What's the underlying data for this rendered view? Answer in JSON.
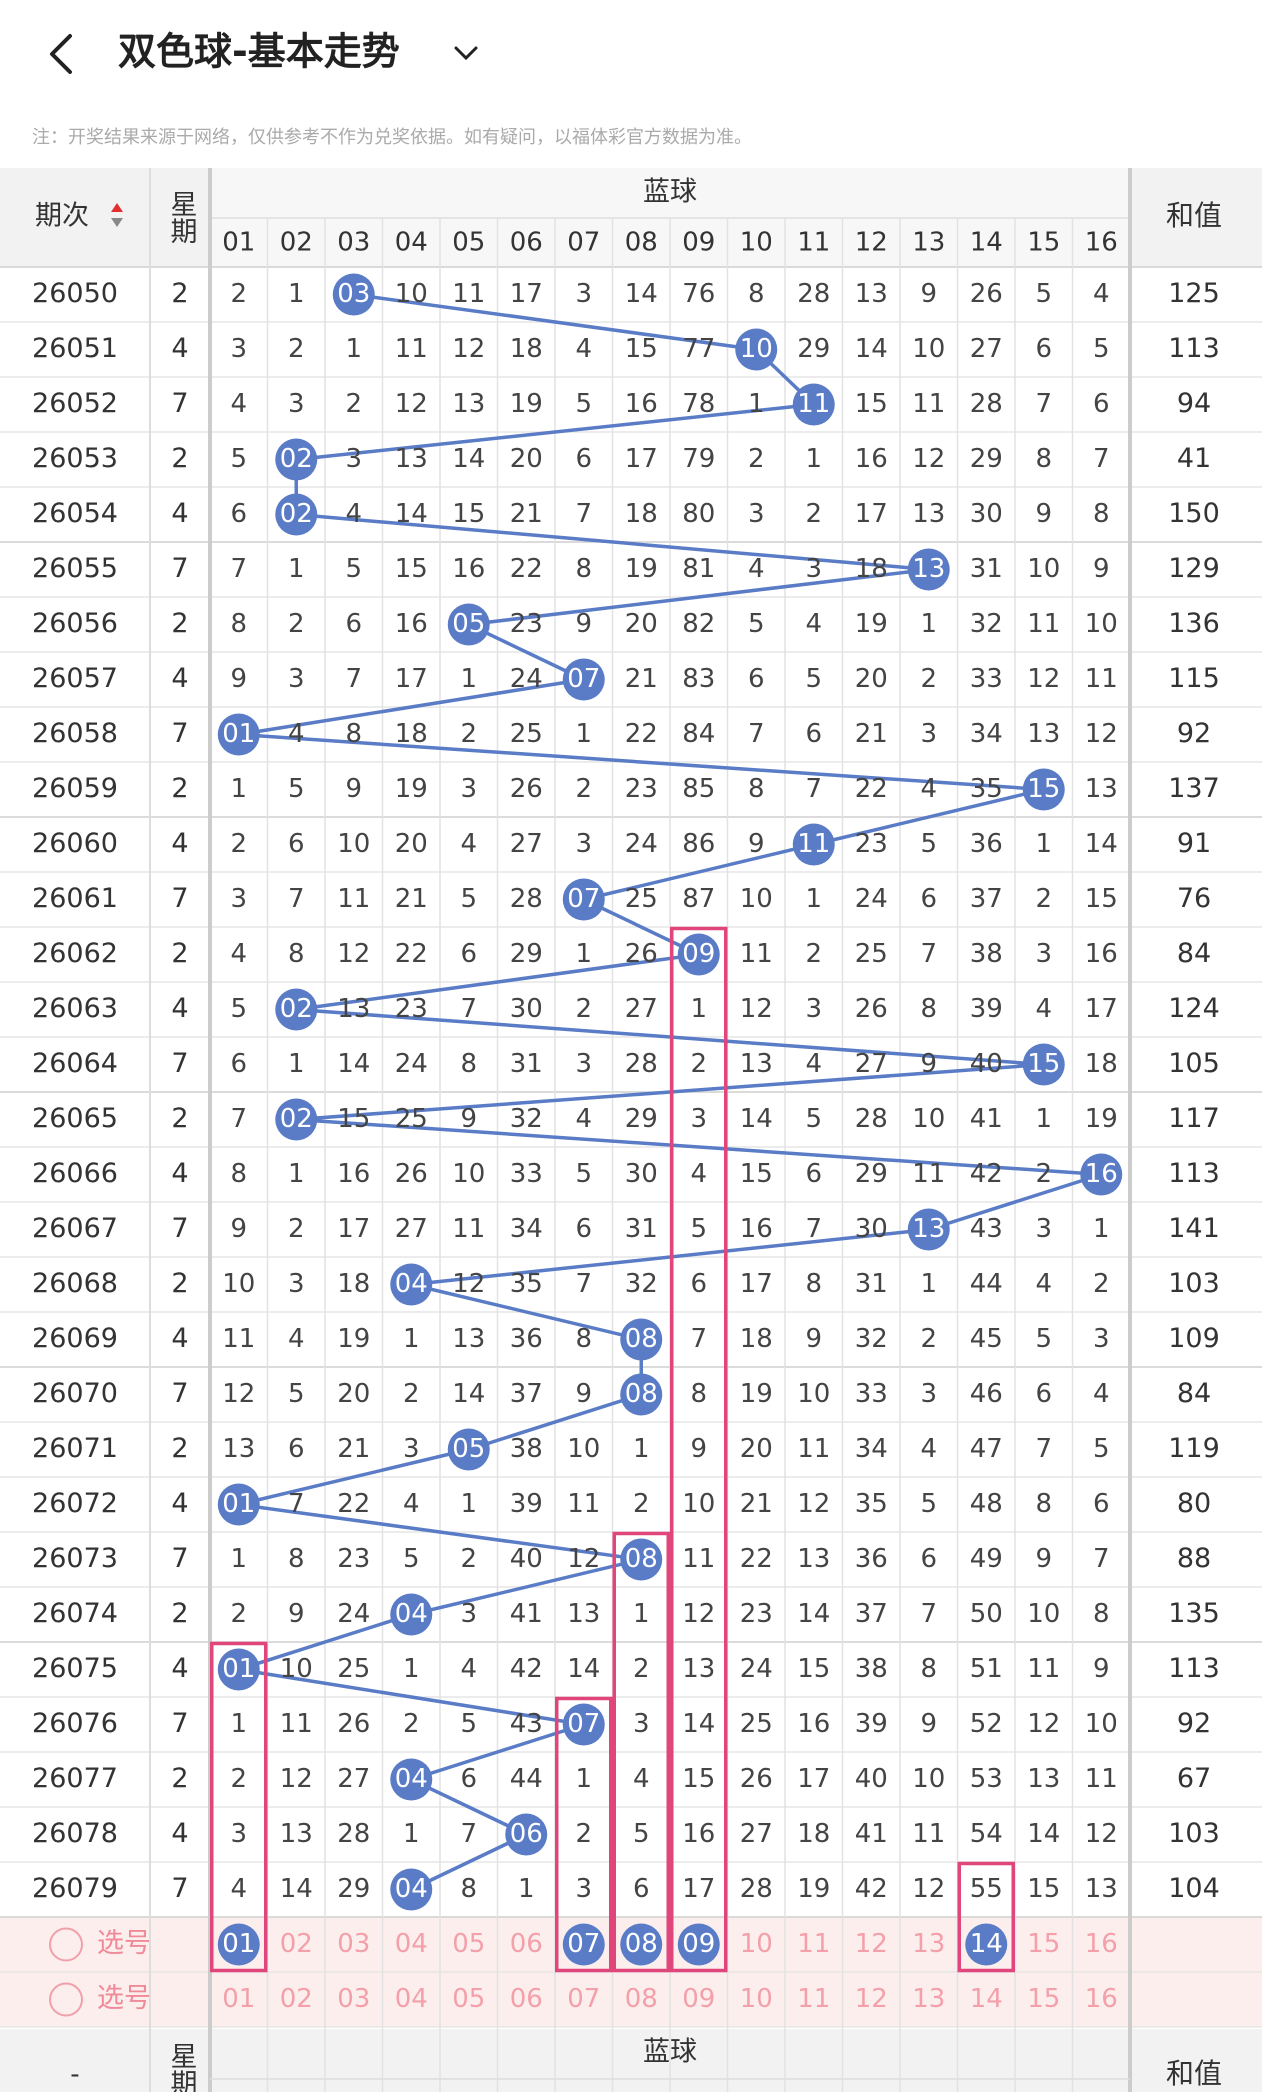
{
  "header": {
    "title": "双色球-基本走势"
  },
  "note": "注：开奖结果来源于网络，仅供参考不作为兑奖依据。如有疑问，以福体彩官方数据为准。",
  "table": {
    "columns": {
      "period": "期次",
      "weekday": "星期",
      "blue": "蓝球",
      "sum": "和值"
    },
    "numbers": [
      "01",
      "02",
      "03",
      "04",
      "05",
      "06",
      "07",
      "08",
      "09",
      "10",
      "11",
      "12",
      "13",
      "14",
      "15",
      "16"
    ],
    "rows": [
      {
        "period": "26050",
        "weekday": "2",
        "cells": [
          "2",
          "1",
          "03",
          "10",
          "11",
          "17",
          "3",
          "14",
          "76",
          "8",
          "28",
          "13",
          "9",
          "26",
          "5",
          "4"
        ],
        "hit": 2,
        "sum": "125"
      },
      {
        "period": "26051",
        "weekday": "4",
        "cells": [
          "3",
          "2",
          "1",
          "11",
          "12",
          "18",
          "4",
          "15",
          "77",
          "10",
          "29",
          "14",
          "10",
          "27",
          "6",
          "5"
        ],
        "hit": 9,
        "sum": "113"
      },
      {
        "period": "26052",
        "weekday": "7",
        "cells": [
          "4",
          "3",
          "2",
          "12",
          "13",
          "19",
          "5",
          "16",
          "78",
          "1",
          "11",
          "15",
          "11",
          "28",
          "7",
          "6"
        ],
        "hit": 10,
        "sum": "94"
      },
      {
        "period": "26053",
        "weekday": "2",
        "cells": [
          "5",
          "02",
          "3",
          "13",
          "14",
          "20",
          "6",
          "17",
          "79",
          "2",
          "1",
          "16",
          "12",
          "29",
          "8",
          "7"
        ],
        "hit": 1,
        "sum": "41"
      },
      {
        "period": "26054",
        "weekday": "4",
        "cells": [
          "6",
          "02",
          "4",
          "14",
          "15",
          "21",
          "7",
          "18",
          "80",
          "3",
          "2",
          "17",
          "13",
          "30",
          "9",
          "8"
        ],
        "hit": 1,
        "sum": "150"
      },
      {
        "period": "26055",
        "weekday": "7",
        "cells": [
          "7",
          "1",
          "5",
          "15",
          "16",
          "22",
          "8",
          "19",
          "81",
          "4",
          "3",
          "18",
          "13",
          "31",
          "10",
          "9"
        ],
        "hit": 12,
        "sum": "129"
      },
      {
        "period": "26056",
        "weekday": "2",
        "cells": [
          "8",
          "2",
          "6",
          "16",
          "05",
          "23",
          "9",
          "20",
          "82",
          "5",
          "4",
          "19",
          "1",
          "32",
          "11",
          "10"
        ],
        "hit": 4,
        "sum": "136"
      },
      {
        "period": "26057",
        "weekday": "4",
        "cells": [
          "9",
          "3",
          "7",
          "17",
          "1",
          "24",
          "07",
          "21",
          "83",
          "6",
          "5",
          "20",
          "2",
          "33",
          "12",
          "11"
        ],
        "hit": 6,
        "sum": "115"
      },
      {
        "period": "26058",
        "weekday": "7",
        "cells": [
          "01",
          "4",
          "8",
          "18",
          "2",
          "25",
          "1",
          "22",
          "84",
          "7",
          "6",
          "21",
          "3",
          "34",
          "13",
          "12"
        ],
        "hit": 0,
        "sum": "92"
      },
      {
        "period": "26059",
        "weekday": "2",
        "cells": [
          "1",
          "5",
          "9",
          "19",
          "3",
          "26",
          "2",
          "23",
          "85",
          "8",
          "7",
          "22",
          "4",
          "35",
          "15",
          "13"
        ],
        "hit": 14,
        "sum": "137"
      },
      {
        "period": "26060",
        "weekday": "4",
        "cells": [
          "2",
          "6",
          "10",
          "20",
          "4",
          "27",
          "3",
          "24",
          "86",
          "9",
          "11",
          "23",
          "5",
          "36",
          "1",
          "14"
        ],
        "hit": 10,
        "sum": "91"
      },
      {
        "period": "26061",
        "weekday": "7",
        "cells": [
          "3",
          "7",
          "11",
          "21",
          "5",
          "28",
          "07",
          "25",
          "87",
          "10",
          "1",
          "24",
          "6",
          "37",
          "2",
          "15"
        ],
        "hit": 6,
        "sum": "76"
      },
      {
        "period": "26062",
        "weekday": "2",
        "cells": [
          "4",
          "8",
          "12",
          "22",
          "6",
          "29",
          "1",
          "26",
          "09",
          "11",
          "2",
          "25",
          "7",
          "38",
          "3",
          "16"
        ],
        "hit": 8,
        "sum": "84"
      },
      {
        "period": "26063",
        "weekday": "4",
        "cells": [
          "5",
          "02",
          "13",
          "23",
          "7",
          "30",
          "2",
          "27",
          "1",
          "12",
          "3",
          "26",
          "8",
          "39",
          "4",
          "17"
        ],
        "hit": 1,
        "sum": "124"
      },
      {
        "period": "26064",
        "weekday": "7",
        "cells": [
          "6",
          "1",
          "14",
          "24",
          "8",
          "31",
          "3",
          "28",
          "2",
          "13",
          "4",
          "27",
          "9",
          "40",
          "15",
          "18"
        ],
        "hit": 14,
        "sum": "105"
      },
      {
        "period": "26065",
        "weekday": "2",
        "cells": [
          "7",
          "02",
          "15",
          "25",
          "9",
          "32",
          "4",
          "29",
          "3",
          "14",
          "5",
          "28",
          "10",
          "41",
          "1",
          "19"
        ],
        "hit": 1,
        "sum": "117"
      },
      {
        "period": "26066",
        "weekday": "4",
        "cells": [
          "8",
          "1",
          "16",
          "26",
          "10",
          "33",
          "5",
          "30",
          "4",
          "15",
          "6",
          "29",
          "11",
          "42",
          "2",
          "16"
        ],
        "hit": 15,
        "sum": "113"
      },
      {
        "period": "26067",
        "weekday": "7",
        "cells": [
          "9",
          "2",
          "17",
          "27",
          "11",
          "34",
          "6",
          "31",
          "5",
          "16",
          "7",
          "30",
          "13",
          "43",
          "3",
          "1"
        ],
        "hit": 12,
        "sum": "141"
      },
      {
        "period": "26068",
        "weekday": "2",
        "cells": [
          "10",
          "3",
          "18",
          "04",
          "12",
          "35",
          "7",
          "32",
          "6",
          "17",
          "8",
          "31",
          "1",
          "44",
          "4",
          "2"
        ],
        "hit": 3,
        "sum": "103"
      },
      {
        "period": "26069",
        "weekday": "4",
        "cells": [
          "11",
          "4",
          "19",
          "1",
          "13",
          "36",
          "8",
          "08",
          "7",
          "18",
          "9",
          "32",
          "2",
          "45",
          "5",
          "3"
        ],
        "hit": 7,
        "sum": "109"
      },
      {
        "period": "26070",
        "weekday": "7",
        "cells": [
          "12",
          "5",
          "20",
          "2",
          "14",
          "37",
          "9",
          "08",
          "8",
          "19",
          "10",
          "33",
          "3",
          "46",
          "6",
          "4"
        ],
        "hit": 7,
        "sum": "84"
      },
      {
        "period": "26071",
        "weekday": "2",
        "cells": [
          "13",
          "6",
          "21",
          "3",
          "05",
          "38",
          "10",
          "1",
          "9",
          "20",
          "11",
          "34",
          "4",
          "47",
          "7",
          "5"
        ],
        "hit": 4,
        "sum": "119"
      },
      {
        "period": "26072",
        "weekday": "4",
        "cells": [
          "01",
          "7",
          "22",
          "4",
          "1",
          "39",
          "11",
          "2",
          "10",
          "21",
          "12",
          "35",
          "5",
          "48",
          "8",
          "6"
        ],
        "hit": 0,
        "sum": "80"
      },
      {
        "period": "26073",
        "weekday": "7",
        "cells": [
          "1",
          "8",
          "23",
          "5",
          "2",
          "40",
          "12",
          "08",
          "11",
          "22",
          "13",
          "36",
          "6",
          "49",
          "9",
          "7"
        ],
        "hit": 7,
        "sum": "88"
      },
      {
        "period": "26074",
        "weekday": "2",
        "cells": [
          "2",
          "9",
          "24",
          "04",
          "3",
          "41",
          "13",
          "1",
          "12",
          "23",
          "14",
          "37",
          "7",
          "50",
          "10",
          "8"
        ],
        "hit": 3,
        "sum": "135"
      },
      {
        "period": "26075",
        "weekday": "4",
        "cells": [
          "01",
          "10",
          "25",
          "1",
          "4",
          "42",
          "14",
          "2",
          "13",
          "24",
          "15",
          "38",
          "8",
          "51",
          "11",
          "9"
        ],
        "hit": 0,
        "sum": "113"
      },
      {
        "period": "26076",
        "weekday": "7",
        "cells": [
          "1",
          "11",
          "26",
          "2",
          "5",
          "43",
          "07",
          "3",
          "14",
          "25",
          "16",
          "39",
          "9",
          "52",
          "12",
          "10"
        ],
        "hit": 6,
        "sum": "92"
      },
      {
        "period": "26077",
        "weekday": "2",
        "cells": [
          "2",
          "12",
          "27",
          "04",
          "6",
          "44",
          "1",
          "4",
          "15",
          "26",
          "17",
          "40",
          "10",
          "53",
          "13",
          "11"
        ],
        "hit": 3,
        "sum": "67"
      },
      {
        "period": "26078",
        "weekday": "4",
        "cells": [
          "3",
          "13",
          "28",
          "1",
          "7",
          "06",
          "2",
          "5",
          "16",
          "27",
          "18",
          "41",
          "11",
          "54",
          "14",
          "12"
        ],
        "hit": 5,
        "sum": "103"
      },
      {
        "period": "26079",
        "weekday": "7",
        "cells": [
          "4",
          "14",
          "29",
          "04",
          "8",
          "1",
          "3",
          "6",
          "17",
          "28",
          "19",
          "42",
          "12",
          "55",
          "15",
          "13"
        ],
        "hit": 3,
        "sum": "104"
      }
    ],
    "boxes": [
      {
        "column": 0,
        "from_row": 25
      },
      {
        "column": 6,
        "from_row": 26
      },
      {
        "column": 7,
        "from_row": 23
      },
      {
        "column": 8,
        "from_row": 12
      },
      {
        "column": 13,
        "from_row": 29
      }
    ],
    "pick_rows": [
      {
        "label": "选号",
        "selected": [
          0,
          6,
          7,
          8,
          13
        ]
      },
      {
        "label": "选号",
        "selected": []
      }
    ],
    "repeat_header": {
      "period": "-"
    }
  }
}
